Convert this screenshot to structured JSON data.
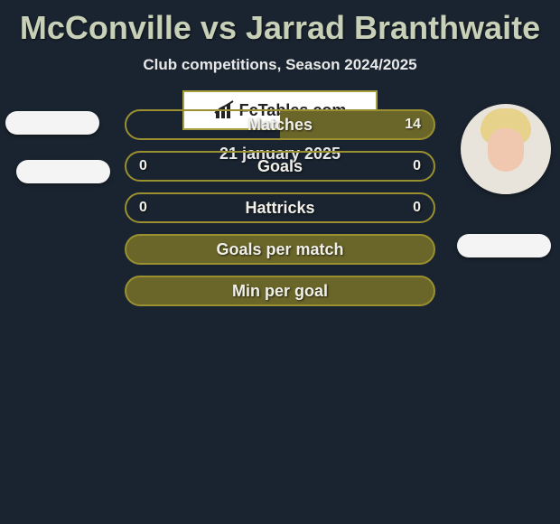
{
  "title_color": "#c8d0b8",
  "background_color": "#1a2430",
  "border_color": "#9a9030",
  "fill_tint": "#6a662a",
  "title": "McConville vs Jarrad Branthwaite",
  "subtitle": "Club competitions, Season 2024/2025",
  "date": "21 january 2025",
  "logo_text": "FcTables.com",
  "player_left": {
    "has_photo": false
  },
  "player_right": {
    "has_photo": true
  },
  "rows": [
    {
      "label": "Matches",
      "left": "",
      "right": "14",
      "left_pct": 0,
      "right_pct": 100
    },
    {
      "label": "Goals",
      "left": "0",
      "right": "0",
      "left_pct": 0,
      "right_pct": 0
    },
    {
      "label": "Hattricks",
      "left": "0",
      "right": "0",
      "left_pct": 0,
      "right_pct": 0
    },
    {
      "label": "Goals per match",
      "left": "",
      "right": "",
      "left_pct": 100,
      "right_pct": 100
    },
    {
      "label": "Min per goal",
      "left": "",
      "right": "",
      "left_pct": 100,
      "right_pct": 100
    }
  ]
}
